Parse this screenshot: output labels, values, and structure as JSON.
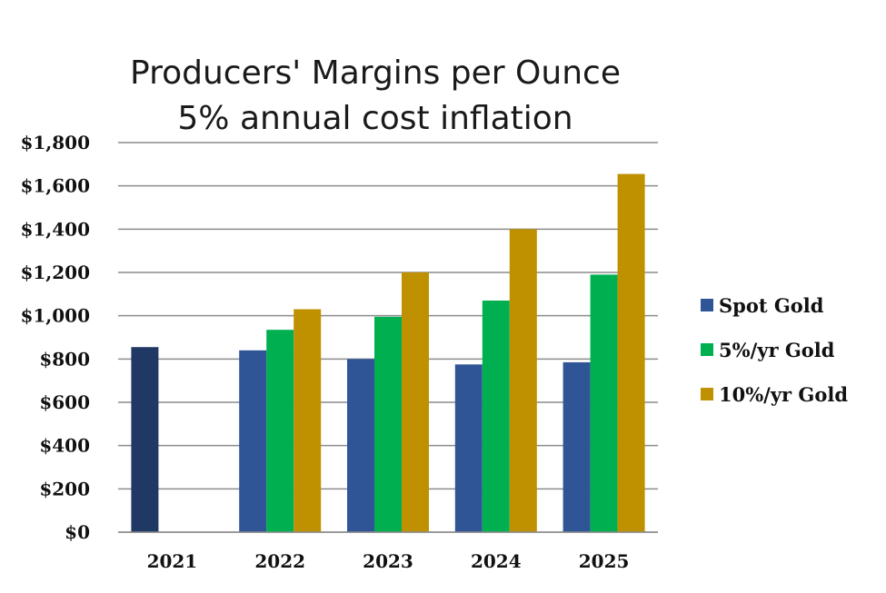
{
  "chart_data": {
    "type": "bar",
    "title": "Producers' Margins per Ounce",
    "subtitle": "5% annual cost inflation",
    "categories": [
      "2021",
      "2022",
      "2023",
      "2024",
      "2025"
    ],
    "series": [
      {
        "name": "Spot Gold",
        "color": "#2F5597",
        "values": [
          855,
          840,
          800,
          775,
          785
        ]
      },
      {
        "name": "5%/yr Gold",
        "color": "#00B050",
        "values": [
          null,
          935,
          995,
          1070,
          1190
        ]
      },
      {
        "name": "10%/yr Gold",
        "color": "#BF9000",
        "values": [
          null,
          1030,
          1200,
          1400,
          1655
        ]
      }
    ],
    "special_colors": [
      {
        "series": 0,
        "index": 0,
        "color": "#1F3864"
      }
    ],
    "ylim": [
      0,
      1800
    ],
    "yticks": [
      0,
      200,
      400,
      600,
      800,
      1000,
      1200,
      1400,
      1600,
      1800
    ],
    "ytick_labels": [
      "$0",
      "$200",
      "$400",
      "$600",
      "$800",
      "$1,000",
      "$1,200",
      "$1,400",
      "$1,600",
      "$1,800"
    ],
    "xlabel": "",
    "ylabel": "",
    "grid": true,
    "legend_position": "right"
  }
}
